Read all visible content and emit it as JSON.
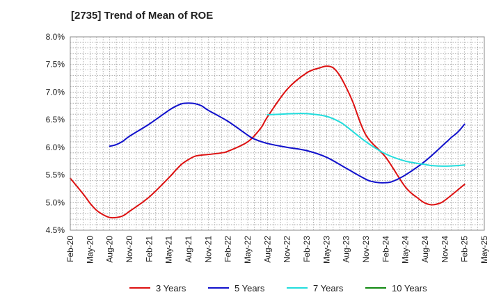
{
  "chart_data": {
    "type": "line",
    "title": "[2735]  Trend of Mean of ROE",
    "xlabel": "",
    "ylabel": "",
    "x_ticks": [
      "Feb-20",
      "May-20",
      "Aug-20",
      "Nov-20",
      "Feb-21",
      "May-21",
      "Aug-21",
      "Nov-21",
      "Feb-22",
      "May-22",
      "Aug-22",
      "Nov-22",
      "Feb-23",
      "May-23",
      "Aug-23",
      "Nov-23",
      "Feb-24",
      "May-24",
      "Aug-24",
      "Nov-24",
      "Feb-25",
      "May-25"
    ],
    "y_ticks": [
      "4.5%",
      "5.0%",
      "5.5%",
      "6.0%",
      "6.5%",
      "7.0%",
      "7.5%",
      "8.0%"
    ],
    "ylim": [
      4.5,
      8.0
    ],
    "grid": true,
    "legend_position": "bottom",
    "series": [
      {
        "name": "3 Years",
        "color": "#dd1111",
        "points": [
          [
            "Feb-20",
            5.44
          ],
          [
            "Apr-20",
            5.15
          ],
          [
            "May-20",
            4.99
          ],
          [
            "Jun-20",
            4.86
          ],
          [
            "Jul-20",
            4.78
          ],
          [
            "Aug-20",
            4.73
          ],
          [
            "Sep-20",
            4.73
          ],
          [
            "Oct-20",
            4.76
          ],
          [
            "Nov-20",
            4.84
          ],
          [
            "Feb-21",
            5.1
          ],
          [
            "May-21",
            5.45
          ],
          [
            "Jun-21",
            5.58
          ],
          [
            "Jul-21",
            5.7
          ],
          [
            "Aug-21",
            5.78
          ],
          [
            "Sep-21",
            5.84
          ],
          [
            "Oct-21",
            5.86
          ],
          [
            "Nov-21",
            5.87
          ],
          [
            "Jan-22",
            5.9
          ],
          [
            "Feb-22",
            5.93
          ],
          [
            "May-22",
            6.1
          ],
          [
            "Jul-22",
            6.35
          ],
          [
            "Aug-22",
            6.55
          ],
          [
            "Nov-22",
            7.05
          ],
          [
            "Feb-23",
            7.35
          ],
          [
            "Apr-23",
            7.44
          ],
          [
            "May-23",
            7.47
          ],
          [
            "Jun-23",
            7.44
          ],
          [
            "Jul-23",
            7.3
          ],
          [
            "Aug-23",
            7.08
          ],
          [
            "Sep-23",
            6.82
          ],
          [
            "Nov-23",
            6.22
          ],
          [
            "Feb-24",
            5.82
          ],
          [
            "May-24",
            5.28
          ],
          [
            "Jul-24",
            5.07
          ],
          [
            "Aug-24",
            4.99
          ],
          [
            "Sep-24",
            4.96
          ],
          [
            "Oct-24",
            4.98
          ],
          [
            "Nov-24",
            5.04
          ],
          [
            "Feb-25",
            5.33
          ]
        ]
      },
      {
        "name": "5 Years",
        "color": "#1111cc",
        "points": [
          [
            "Aug-20",
            6.02
          ],
          [
            "Sep-20",
            6.05
          ],
          [
            "Oct-20",
            6.11
          ],
          [
            "Nov-20",
            6.2
          ],
          [
            "Feb-21",
            6.42
          ],
          [
            "May-21",
            6.67
          ],
          [
            "Jun-21",
            6.74
          ],
          [
            "Jul-21",
            6.79
          ],
          [
            "Aug-21",
            6.8
          ],
          [
            "Sep-21",
            6.79
          ],
          [
            "Oct-21",
            6.75
          ],
          [
            "Nov-21",
            6.67
          ],
          [
            "Feb-22",
            6.47
          ],
          [
            "May-22",
            6.22
          ],
          [
            "Jun-22",
            6.15
          ],
          [
            "Aug-22",
            6.07
          ],
          [
            "Nov-22",
            6.0
          ],
          [
            "Feb-23",
            5.94
          ],
          [
            "May-23",
            5.82
          ],
          [
            "Aug-23",
            5.62
          ],
          [
            "Nov-23",
            5.42
          ],
          [
            "Dec-23",
            5.38
          ],
          [
            "Jan-24",
            5.36
          ],
          [
            "Feb-24",
            5.36
          ],
          [
            "Mar-24",
            5.38
          ],
          [
            "May-24",
            5.5
          ],
          [
            "Aug-24",
            5.75
          ],
          [
            "Nov-24",
            6.07
          ],
          [
            "Dec-24",
            6.18
          ],
          [
            "Jan-25",
            6.28
          ],
          [
            "Feb-25",
            6.42
          ]
        ]
      },
      {
        "name": "7 Years",
        "color": "#22dddd",
        "points": [
          [
            "Aug-22",
            6.59
          ],
          [
            "Oct-22",
            6.6
          ],
          [
            "Dec-22",
            6.61
          ],
          [
            "Feb-23",
            6.61
          ],
          [
            "May-23",
            6.56
          ],
          [
            "Jul-23",
            6.46
          ],
          [
            "Aug-23",
            6.38
          ],
          [
            "Nov-23",
            6.1
          ],
          [
            "Feb-24",
            5.88
          ],
          [
            "May-24",
            5.75
          ],
          [
            "Aug-24",
            5.69
          ],
          [
            "Sep-24",
            5.67
          ],
          [
            "Nov-24",
            5.66
          ],
          [
            "Jan-25",
            5.67
          ],
          [
            "Feb-25",
            5.68
          ]
        ]
      },
      {
        "name": "10 Years",
        "color": "#118811",
        "points": []
      }
    ]
  }
}
